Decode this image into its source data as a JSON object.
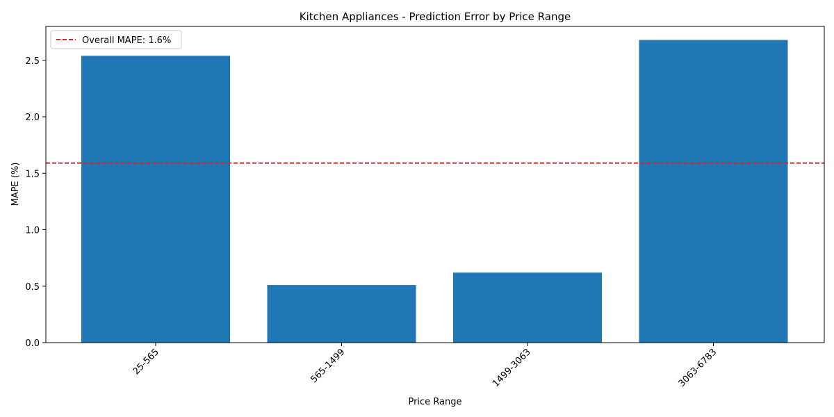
{
  "chart_data": {
    "type": "bar",
    "title": "Kitchen Appliances - Prediction Error by Price Range",
    "xlabel": "Price Range",
    "ylabel": "MAPE (%)",
    "categories": [
      "25-565",
      "565-1499",
      "1499-3063",
      "3063-6783"
    ],
    "values": [
      2.54,
      0.51,
      0.62,
      2.68
    ],
    "ylim": [
      0,
      2.8
    ],
    "yticks": [
      "0.0",
      "0.5",
      "1.0",
      "1.5",
      "2.0",
      "2.5"
    ],
    "bar_color": "#1f77b4",
    "reference_line": {
      "value": 1.59,
      "label": "Overall MAPE: 1.6%",
      "color": "#d62728",
      "style": "dashed"
    },
    "legend": "top-left",
    "grid": false,
    "xtick_rotation": 45
  }
}
